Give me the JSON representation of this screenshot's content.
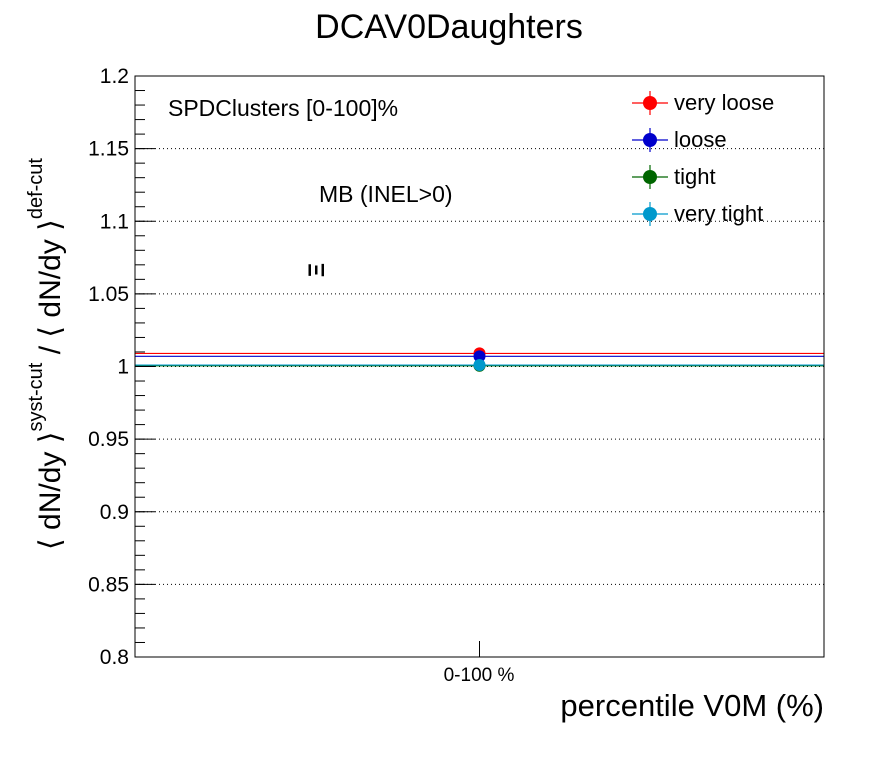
{
  "chart_data": {
    "type": "scatter",
    "title": "DCAV0Daughters",
    "xlabel": "percentile V0M (%)",
    "ylabel": {
      "part1": "⟨ dN/dy ⟩",
      "sup1": "syst-cut",
      "sep": " / ",
      "part2": "⟨ dN/dy ⟩",
      "sup2": "def-cut"
    },
    "categories": [
      "0-100 %"
    ],
    "ylim": [
      0.8,
      1.2
    ],
    "yticks": [
      "0.8",
      "0.85",
      "0.9",
      "0.95",
      "1",
      "1.05",
      "1.1",
      "1.15",
      "1.2"
    ],
    "ygrid": true,
    "legend_position": "top-right",
    "series": [
      {
        "name": "very loose",
        "color": "#ff0000",
        "values": [
          1.009
        ]
      },
      {
        "name": "loose",
        "color": "#0000cc",
        "values": [
          1.007
        ]
      },
      {
        "name": "tight",
        "color": "#006600",
        "values": [
          1.0005
        ]
      },
      {
        "name": "very tight",
        "color": "#0099cc",
        "values": [
          1.001
        ]
      }
    ],
    "annotations": {
      "selection": "SPDClusters [0-100]%",
      "event_class": "MB (INEL>0)",
      "particle": "Ξ"
    }
  }
}
